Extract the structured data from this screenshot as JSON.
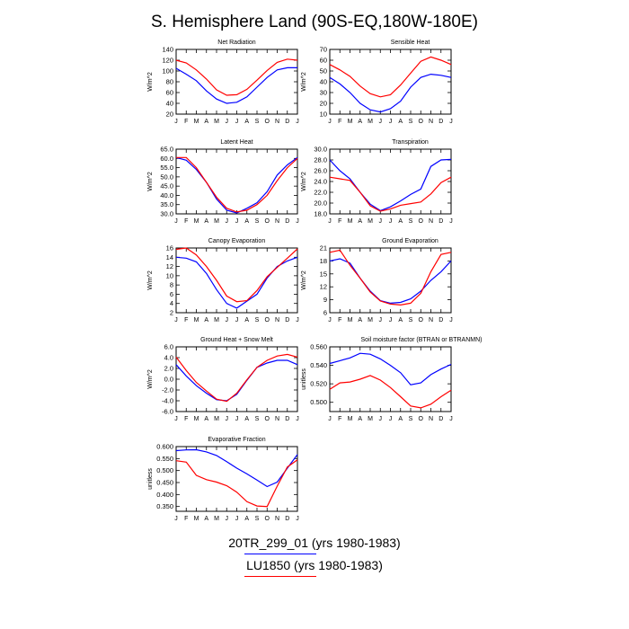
{
  "title": "S. Hemisphere Land (90S-EQ,180W-180E)",
  "months": [
    "J",
    "F",
    "M",
    "A",
    "M",
    "J",
    "J",
    "A",
    "S",
    "O",
    "N",
    "D",
    "J"
  ],
  "colors": {
    "series1": "#0000ff",
    "series2": "#ff0000"
  },
  "legend": [
    {
      "label": "20TR_299_01 (yrs 1980-1983)",
      "color": "#0000ff"
    },
    {
      "label": "LU1850 (yrs 1980-1983)",
      "color": "#ff0000"
    }
  ],
  "chart_data": [
    {
      "type": "line",
      "title": "Net Radiation",
      "ylabel": "W/m^2",
      "ylim": [
        20,
        140
      ],
      "ticks": [
        "20",
        "40",
        "60",
        "80",
        "100",
        "120",
        "140"
      ],
      "x": [
        "J",
        "F",
        "M",
        "A",
        "M",
        "J",
        "J",
        "A",
        "S",
        "O",
        "N",
        "D",
        "J"
      ],
      "series": [
        {
          "values": [
            105,
            94,
            82,
            63,
            48,
            40,
            42,
            52,
            70,
            88,
            102,
            106,
            106
          ]
        },
        {
          "values": [
            120,
            115,
            102,
            85,
            65,
            55,
            56,
            66,
            83,
            101,
            116,
            122,
            120
          ]
        }
      ]
    },
    {
      "type": "line",
      "title": "Sensible Heat",
      "ylabel": "W/m^2",
      "ylim": [
        10,
        70
      ],
      "ticks": [
        "10",
        "20",
        "30",
        "40",
        "50",
        "60",
        "70"
      ],
      "x": [
        "J",
        "F",
        "M",
        "A",
        "M",
        "J",
        "J",
        "A",
        "S",
        "O",
        "N",
        "D",
        "J"
      ],
      "series": [
        {
          "values": [
            44,
            38,
            30,
            20,
            14,
            12,
            15,
            22,
            35,
            44,
            47,
            46,
            44
          ]
        },
        {
          "values": [
            56,
            51,
            45,
            36,
            29,
            26,
            28,
            37,
            48,
            59,
            63,
            60,
            56
          ]
        }
      ]
    },
    {
      "type": "line",
      "title": "Latent Heat",
      "ylabel": "W/m^2",
      "ylim": [
        30,
        65
      ],
      "ticks": [
        "30.0",
        "35.0",
        "40.0",
        "45.0",
        "50.0",
        "55.0",
        "60.0",
        "65.0"
      ],
      "x": [
        "J",
        "F",
        "M",
        "A",
        "M",
        "J",
        "J",
        "A",
        "S",
        "O",
        "N",
        "D",
        "J"
      ],
      "series": [
        {
          "values": [
            60.5,
            59,
            54,
            47,
            38,
            32,
            30.5,
            33,
            36,
            42,
            51,
            56.5,
            60.5
          ]
        },
        {
          "values": [
            60.5,
            60.5,
            55,
            47,
            39,
            33,
            31,
            32,
            35,
            40,
            48,
            55,
            60
          ]
        }
      ]
    },
    {
      "type": "line",
      "title": "Transpiration",
      "ylabel": "W/m^2",
      "ylim": [
        18,
        30
      ],
      "ticks": [
        "18.0",
        "20.0",
        "22.0",
        "24.0",
        "26.0",
        "28.0",
        "30.0"
      ],
      "x": [
        "J",
        "F",
        "M",
        "A",
        "M",
        "J",
        "J",
        "A",
        "S",
        "O",
        "N",
        "D",
        "J"
      ],
      "series": [
        {
          "values": [
            28,
            26,
            24.5,
            22,
            19.8,
            18.6,
            19.3,
            20.4,
            21.6,
            22.6,
            26.8,
            28,
            28.1
          ]
        },
        {
          "values": [
            24.8,
            24.5,
            24.2,
            22,
            19.5,
            18.5,
            18.9,
            19.6,
            19.9,
            20.2,
            21.7,
            23.8,
            24.8
          ]
        }
      ]
    },
    {
      "type": "line",
      "title": "Canopy Evaporation",
      "ylabel": "W/m^2",
      "ylim": [
        2,
        16
      ],
      "ticks": [
        "2",
        "4",
        "6",
        "8",
        "10",
        "12",
        "14",
        "16"
      ],
      "x": [
        "J",
        "F",
        "M",
        "A",
        "M",
        "J",
        "J",
        "A",
        "S",
        "O",
        "N",
        "D",
        "J"
      ],
      "series": [
        {
          "values": [
            14,
            13.8,
            13,
            10.5,
            7,
            4,
            3,
            4.5,
            6,
            9.5,
            12,
            13.2,
            14
          ]
        },
        {
          "values": [
            15.7,
            16,
            14.5,
            12,
            9,
            5.6,
            4.4,
            4.6,
            6.8,
            9.8,
            11.8,
            13.8,
            15.8
          ]
        }
      ]
    },
    {
      "type": "line",
      "title": "Ground Evaporation",
      "ylabel": "W/m^2",
      "ylim": [
        6,
        21
      ],
      "ticks": [
        "6",
        "9",
        "12",
        "15",
        "18",
        "21"
      ],
      "x": [
        "J",
        "F",
        "M",
        "A",
        "M",
        "J",
        "J",
        "A",
        "S",
        "O",
        "N",
        "D",
        "J"
      ],
      "series": [
        {
          "values": [
            18,
            18.5,
            17.5,
            14,
            11,
            8.8,
            8.2,
            8.4,
            9.2,
            11,
            13.5,
            15.5,
            18
          ]
        },
        {
          "values": [
            20,
            20.5,
            17,
            14,
            10.8,
            8.7,
            8,
            7.8,
            8.2,
            10.5,
            15.5,
            19.5,
            20
          ]
        }
      ]
    },
    {
      "type": "line",
      "title": "Ground Heat + Snow Melt",
      "ylabel": "W/m^2",
      "ylim": [
        -6,
        6
      ],
      "ticks": [
        "-6.0",
        "-4.0",
        "-2.0",
        "0.0",
        "2.0",
        "4.0",
        "6.0"
      ],
      "x": [
        "J",
        "F",
        "M",
        "A",
        "M",
        "J",
        "J",
        "A",
        "S",
        "O",
        "N",
        "D",
        "J"
      ],
      "series": [
        {
          "values": [
            2.7,
            0.6,
            -1.2,
            -2.6,
            -3.8,
            -4,
            -2.8,
            -0.2,
            2.2,
            3,
            3.5,
            3.5,
            2.7
          ]
        },
        {
          "values": [
            4.1,
            1.6,
            -0.6,
            -2.2,
            -3.7,
            -4.1,
            -2.6,
            -0.1,
            2.2,
            3.5,
            4.3,
            4.6,
            4.1
          ]
        }
      ]
    },
    {
      "type": "line",
      "title": "Soil moisture factor (BTRAN or BTRANMN)",
      "ylabel": "unitless",
      "ylim": [
        0.49,
        0.56
      ],
      "ticks": [
        "0.500",
        "0.520",
        "0.540",
        "0.560"
      ],
      "x": [
        "J",
        "F",
        "M",
        "A",
        "M",
        "J",
        "J",
        "A",
        "S",
        "O",
        "N",
        "D",
        "J"
      ],
      "series": [
        {
          "values": [
            0.542,
            0.545,
            0.548,
            0.553,
            0.552,
            0.547,
            0.54,
            0.532,
            0.519,
            0.521,
            0.53,
            0.536,
            0.541
          ]
        },
        {
          "values": [
            0.514,
            0.521,
            0.522,
            0.525,
            0.529,
            0.524,
            0.516,
            0.506,
            0.496,
            0.494,
            0.498,
            0.506,
            0.513
          ]
        }
      ]
    },
    {
      "type": "line",
      "title": "Evaporative Fraction",
      "ylabel": "unitless",
      "ylim": [
        0.33,
        0.6
      ],
      "ticks": [
        "0.350",
        "0.400",
        "0.450",
        "0.500",
        "0.550",
        "0.600"
      ],
      "x": [
        "J",
        "F",
        "M",
        "A",
        "M",
        "J",
        "J",
        "A",
        "S",
        "O",
        "N",
        "D",
        "J"
      ],
      "series": [
        {
          "values": [
            0.583,
            0.586,
            0.587,
            0.578,
            0.563,
            0.537,
            0.51,
            0.486,
            0.46,
            0.433,
            0.452,
            0.51,
            0.567
          ]
        },
        {
          "values": [
            0.541,
            0.535,
            0.48,
            0.462,
            0.452,
            0.437,
            0.41,
            0.37,
            0.352,
            0.35,
            0.435,
            0.515,
            0.545
          ]
        }
      ]
    }
  ]
}
